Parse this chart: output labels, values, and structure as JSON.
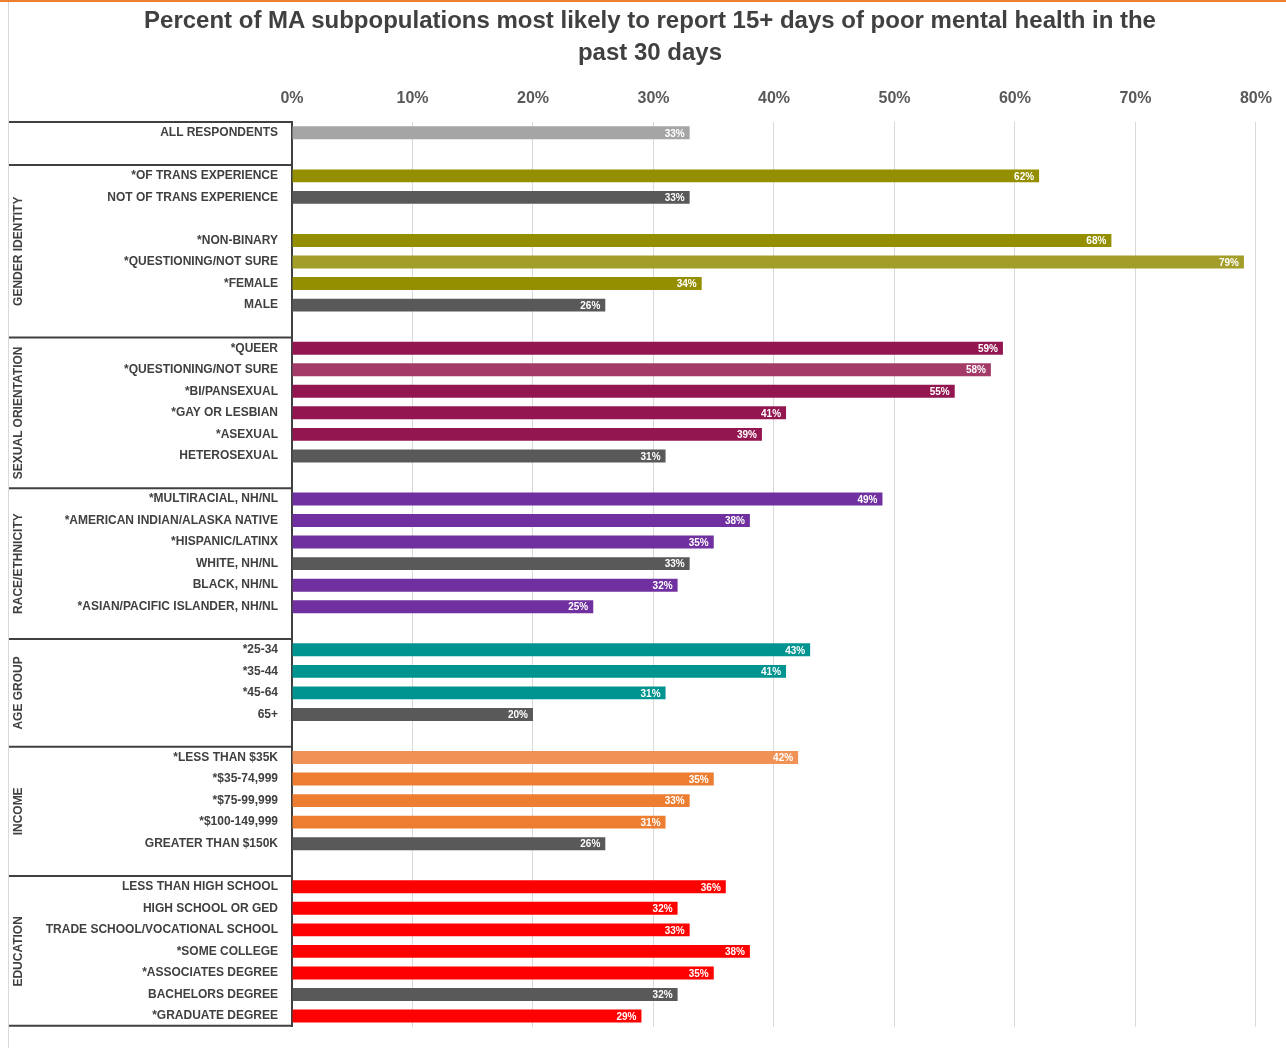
{
  "chart_data": {
    "type": "bar",
    "orientation": "horizontal",
    "title": "Percent of MA subpopulations most likely to report 15+ days of poor mental health in the past 30 days",
    "categories": [
      "ALL RESPONDENTS",
      null,
      "*OF TRANS EXPERIENCE",
      "NOT OF TRANS EXPERIENCE",
      null,
      "*NON-BINARY",
      "*QUESTIONING/NOT SURE",
      "*FEMALE",
      "MALE",
      null,
      "*QUEER",
      "*QUESTIONING/NOT SURE",
      "*BI/PANSEXUAL",
      "*GAY OR LESBIAN",
      "*ASEXUAL",
      "HETEROSEXUAL",
      null,
      "*MULTIRACIAL, NH/NL",
      "*AMERICAN INDIAN/ALASKA NATIVE",
      "*HISPANIC/LATINX",
      "WHITE, NH/NL",
      "BLACK, NH/NL",
      "*ASIAN/PACIFIC ISLANDER, NH/NL",
      null,
      "*25-34",
      "*35-44",
      "*45-64",
      "65+",
      null,
      "*LESS THAN $35K",
      "*$35-74,999",
      "*$75-99,999",
      "*$100-149,999",
      "GREATER THAN $150K",
      null,
      "LESS THAN HIGH SCHOOL",
      "HIGH SCHOOL OR GED",
      "TRADE SCHOOL/VOCATIONAL SCHOOL",
      "*SOME COLLEGE",
      "*ASSOCIATES DEGREE",
      "BACHELORS DEGREE",
      "*GRADUATE DEGREE"
    ],
    "values": [
      33,
      null,
      62,
      33,
      null,
      68,
      79,
      34,
      26,
      null,
      59,
      58,
      55,
      41,
      39,
      31,
      null,
      49,
      38,
      35,
      33,
      32,
      25,
      null,
      43,
      41,
      31,
      20,
      null,
      42,
      35,
      33,
      31,
      26,
      null,
      36,
      32,
      33,
      38,
      35,
      32,
      29
    ],
    "value_labels": [
      "33%",
      null,
      "62%",
      "33%",
      null,
      "68%",
      "79%",
      "34%",
      "26%",
      null,
      "59%",
      "58%",
      "55%",
      "41%",
      "39%",
      "31%",
      null,
      "49%",
      "38%",
      "35%",
      "33%",
      "32%",
      "25%",
      null,
      "43%",
      "41%",
      "31%",
      "20%",
      null,
      "42%",
      "35%",
      "33%",
      "31%",
      "26%",
      null,
      "36%",
      "32%",
      "33%",
      "38%",
      "35%",
      "32%",
      "29%"
    ],
    "colors": [
      "#a5a5a5",
      null,
      "#948f00",
      "#595959",
      null,
      "#948f00",
      "#a39e2a",
      "#948f00",
      "#595959",
      null,
      "#931650",
      "#a33a68",
      "#931650",
      "#931650",
      "#931650",
      "#595959",
      null,
      "#7030a0",
      "#7030a0",
      "#7030a0",
      "#595959",
      "#7030a0",
      "#7030a0",
      null,
      "#009490",
      "#009490",
      "#009490",
      "#595959",
      null,
      "#f09255",
      "#ed7d31",
      "#ed7d31",
      "#ed7d31",
      "#595959",
      null,
      "#ff0000",
      "#ff0000",
      "#ff0000",
      "#ff0000",
      "#ff0000",
      "#595959",
      "#ff0000"
    ],
    "xlim": [
      0,
      80
    ],
    "xticks": [
      {
        "value": 0,
        "label": "0%"
      },
      {
        "value": 10,
        "label": "10%"
      },
      {
        "value": 20,
        "label": "20%"
      },
      {
        "value": 30,
        "label": "30%"
      },
      {
        "value": 40,
        "label": "40%"
      },
      {
        "value": 50,
        "label": "50%"
      },
      {
        "value": 60,
        "label": "60%"
      },
      {
        "value": 70,
        "label": "70%"
      },
      {
        "value": 80,
        "label": "80%"
      }
    ],
    "grid": "x",
    "annotations": [
      "GENDER IDENTITY",
      "SEXUAL ORIENTATION",
      "RACE/ETHNICITY",
      "AGE GROUP",
      "INCOME",
      "EDUCATION"
    ]
  }
}
